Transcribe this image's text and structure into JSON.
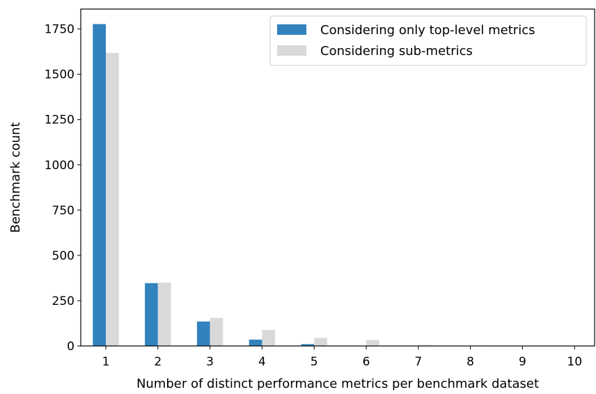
{
  "chart_data": {
    "type": "bar",
    "title": "",
    "xlabel": "Number of distinct performance metrics per benchmark dataset",
    "ylabel": "Benchmark count",
    "categories": [
      "1",
      "2",
      "3",
      "4",
      "5",
      "6",
      "7",
      "8",
      "9",
      "10"
    ],
    "ylim": [
      0,
      1860
    ],
    "yticks": [
      0,
      250,
      500,
      750,
      1000,
      1250,
      1500,
      1750
    ],
    "grid": false,
    "legend_position": "top-right",
    "series": [
      {
        "name": "Considering only top-level metrics",
        "color": "#3182bd",
        "values": [
          1777,
          347,
          135,
          35,
          10,
          1,
          0,
          0,
          0,
          0
        ]
      },
      {
        "name": "Considering sub-metrics",
        "color": "#d9d9d9",
        "values": [
          1618,
          350,
          155,
          88,
          45,
          33,
          6,
          3,
          2,
          2
        ]
      }
    ]
  }
}
